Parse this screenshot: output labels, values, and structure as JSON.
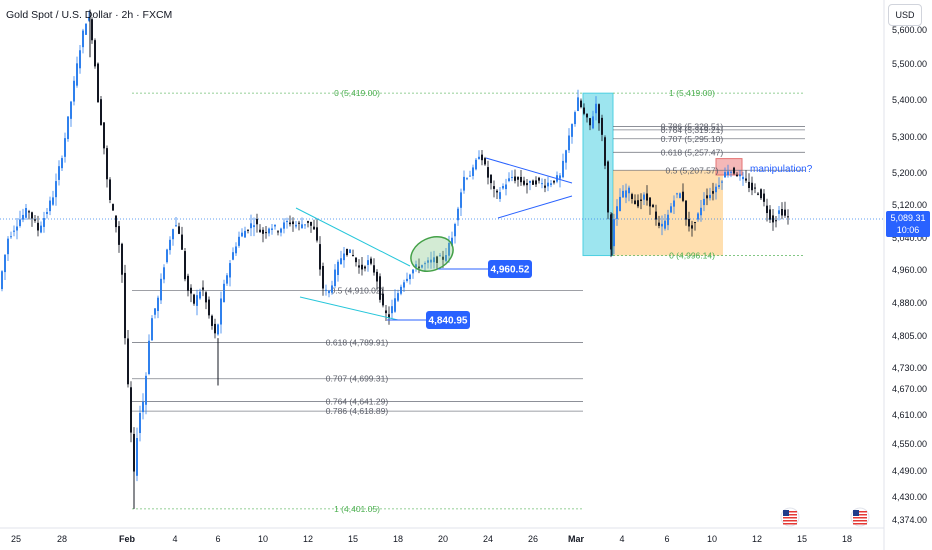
{
  "header": {
    "title": "Gold Spot / U.S. Dollar · 2h · FXCM",
    "currency_button": "USD"
  },
  "colors": {
    "bull": "#2f80ed",
    "bear": "#131722",
    "fib_green": "#4caf50",
    "fib_gray": "#5d606b",
    "trendline": "#26c6da",
    "blue_line": "#2962ff",
    "label_bg": "#2962ff",
    "ellipse": "#43a047",
    "cyan_zone": "#4dd0e1",
    "orange_zone": "#ffb74d",
    "red_box": "#ef9a9a",
    "annotation_blue": "#2962ff"
  },
  "chart_data": {
    "type": "candlestick",
    "title": "Gold Spot / U.S. Dollar · 2h · FXCM",
    "ylim": [
      4374,
      5680
    ],
    "y_ticks": [
      "5,600.00",
      "5,500.00",
      "5,400.00",
      "5,300.00",
      "5,200.00",
      "5,120.00",
      "5,040.00",
      "4,960.00",
      "4,880.00",
      "4,805.00",
      "4,730.00",
      "4,670.00",
      "4,610.00",
      "4,550.00",
      "4,490.00",
      "4,430.00",
      "4,374.00"
    ],
    "x_ticks": [
      "25",
      "28",
      "Feb",
      "4",
      "6",
      "10",
      "12",
      "15",
      "18",
      "20",
      "24",
      "26",
      "Mar",
      "4",
      "6",
      "10",
      "12",
      "15",
      "18"
    ],
    "last_price": "5,089.31",
    "countdown": "10:06",
    "price_path": [
      [
        0,
        4900
      ],
      [
        10,
        5040
      ],
      [
        20,
        5080
      ],
      [
        30,
        5110
      ],
      [
        40,
        5060
      ],
      [
        48,
        5100
      ],
      [
        56,
        5150
      ],
      [
        64,
        5250
      ],
      [
        72,
        5380
      ],
      [
        78,
        5480
      ],
      [
        84,
        5580
      ],
      [
        90,
        5650
      ],
      [
        95,
        5560
      ],
      [
        100,
        5400
      ],
      [
        105,
        5300
      ],
      [
        110,
        5150
      ],
      [
        115,
        5100
      ],
      [
        120,
        5050
      ],
      [
        124,
        4950
      ],
      [
        128,
        4750
      ],
      [
        132,
        4600
      ],
      [
        136,
        4480
      ],
      [
        140,
        4600
      ],
      [
        146,
        4650
      ],
      [
        152,
        4830
      ],
      [
        160,
        4890
      ],
      [
        168,
        5000
      ],
      [
        176,
        5080
      ],
      [
        182,
        5050
      ],
      [
        188,
        4920
      ],
      [
        196,
        4880
      ],
      [
        204,
        4920
      ],
      [
        212,
        4840
      ],
      [
        218,
        4800
      ],
      [
        224,
        4900
      ],
      [
        232,
        4980
      ],
      [
        240,
        5040
      ],
      [
        248,
        5060
      ],
      [
        256,
        5080
      ],
      [
        264,
        5050
      ],
      [
        272,
        5070
      ],
      [
        280,
        5060
      ],
      [
        290,
        5080
      ],
      [
        300,
        5070
      ],
      [
        310,
        5080
      ],
      [
        318,
        5050
      ],
      [
        324,
        4920
      ],
      [
        330,
        4900
      ],
      [
        338,
        4960
      ],
      [
        346,
        5010
      ],
      [
        354,
        5000
      ],
      [
        362,
        4960
      ],
      [
        370,
        4980
      ],
      [
        378,
        4950
      ],
      [
        384,
        4870
      ],
      [
        390,
        4845
      ],
      [
        396,
        4880
      ],
      [
        404,
        4930
      ],
      [
        412,
        4955
      ],
      [
        420,
        4970
      ],
      [
        428,
        4975
      ],
      [
        436,
        4985
      ],
      [
        446,
        4990
      ],
      [
        454,
        5040
      ],
      [
        460,
        5120
      ],
      [
        466,
        5190
      ],
      [
        474,
        5200
      ],
      [
        482,
        5260
      ],
      [
        490,
        5190
      ],
      [
        498,
        5140
      ],
      [
        506,
        5170
      ],
      [
        514,
        5190
      ],
      [
        522,
        5180
      ],
      [
        530,
        5170
      ],
      [
        538,
        5180
      ],
      [
        546,
        5170
      ],
      [
        554,
        5180
      ],
      [
        562,
        5190
      ],
      [
        568,
        5260
      ],
      [
        574,
        5340
      ],
      [
        580,
        5400
      ],
      [
        586,
        5360
      ],
      [
        592,
        5330
      ],
      [
        598,
        5390
      ],
      [
        604,
        5300
      ],
      [
        608,
        5200
      ],
      [
        612,
        5000
      ],
      [
        616,
        5080
      ],
      [
        622,
        5140
      ],
      [
        630,
        5160
      ],
      [
        638,
        5120
      ],
      [
        646,
        5140
      ],
      [
        654,
        5120
      ],
      [
        660,
        5060
      ],
      [
        668,
        5080
      ],
      [
        676,
        5140
      ],
      [
        684,
        5150
      ],
      [
        690,
        5060
      ],
      [
        698,
        5080
      ],
      [
        706,
        5140
      ],
      [
        714,
        5150
      ],
      [
        722,
        5180
      ],
      [
        730,
        5210
      ],
      [
        738,
        5200
      ],
      [
        746,
        5180
      ],
      [
        754,
        5160
      ],
      [
        762,
        5150
      ],
      [
        770,
        5100
      ],
      [
        776,
        5080
      ],
      [
        782,
        5110
      ],
      [
        788,
        5090
      ]
    ],
    "fib_right": [
      {
        "label": "1 (5,419.00)",
        "price": 5419
      },
      {
        "label": "0.786 (5,328.51)",
        "price": 5328.51
      },
      {
        "label": "0.764 (5,319.21)",
        "price": 5319.21
      },
      {
        "label": "0.707 (5,295.10)",
        "price": 5295.1
      },
      {
        "label": "0.618 (5,257.47)",
        "price": 5257.47
      },
      {
        "label": "0.5 (5,207.57)",
        "price": 5207.57
      },
      {
        "label": "0 (4,996.14)",
        "price": 4996.14
      }
    ],
    "fib_left": [
      {
        "label": "0 (5,419.00)",
        "price": 5419
      },
      {
        "label": "0.5 (4,910.02)",
        "price": 4910.02
      },
      {
        "label": "0.618 (4,789.91)",
        "price": 4789.91
      },
      {
        "label": "0.707 (4,699.31)",
        "price": 4699.31
      },
      {
        "label": "0.764 (4,641.29)",
        "price": 4641.29
      },
      {
        "label": "0.786 (4,618.89)",
        "price": 4618.89
      },
      {
        "label": "1 (4,401.05)",
        "price": 4401.05
      }
    ],
    "price_labels": [
      "4,960.52",
      "4,840.95"
    ],
    "annotation": "manipulation?"
  }
}
